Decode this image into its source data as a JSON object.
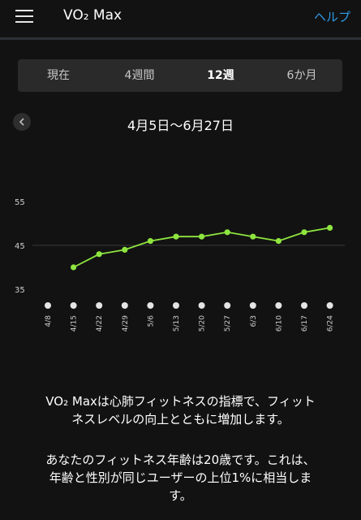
{
  "header": {
    "title": "VO₂ Max",
    "help_label": "ヘルプ"
  },
  "tabs": [
    {
      "label": "現在",
      "active": false
    },
    {
      "label": "4週間",
      "active": false
    },
    {
      "label": "12週",
      "active": true
    },
    {
      "label": "6か月",
      "active": false
    }
  ],
  "date_range": "4月5日～6月27日",
  "chart_data": {
    "type": "line",
    "x": [
      "4/8",
      "4/15",
      "4/22",
      "4/29",
      "5/6",
      "5/13",
      "5/20",
      "5/27",
      "6/3",
      "6/10",
      "6/17",
      "6/24"
    ],
    "values": [
      null,
      40,
      43,
      44,
      46,
      47,
      47,
      48,
      47,
      46,
      48,
      49
    ],
    "yticks": [
      35,
      45,
      55
    ],
    "ylim": [
      35,
      55
    ],
    "line_color": "#8ee53f",
    "grid": "horizontal line at 45"
  },
  "description": {
    "line1": "VO₂ Maxは心肺フィットネスの指標で、フィット",
    "line2": "ネスレベルの向上とともに増加します。",
    "line3": "あなたのフィットネス年齢は20歳です。これは、",
    "line4": "年齢と性別が同じユーザーの上位1%に相当しま",
    "line5": "す。"
  }
}
